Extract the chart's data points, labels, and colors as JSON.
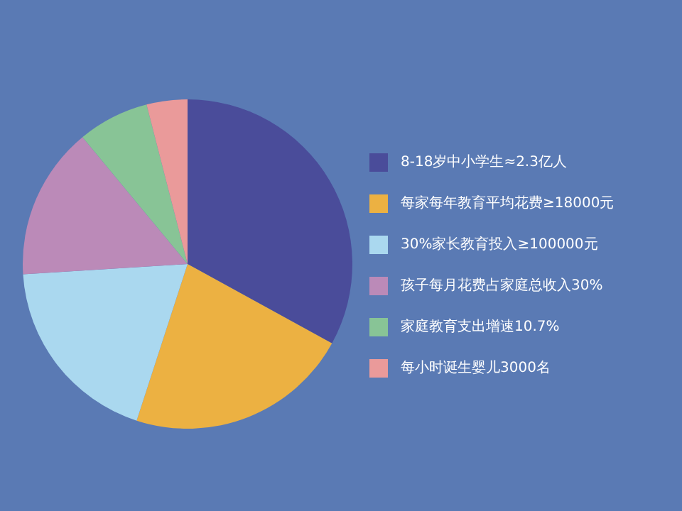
{
  "chart_data": {
    "type": "pie",
    "categories": [
      "8-18岁中小学生≈2.3亿人",
      "每家每年教育平均花费≥18000元",
      "30%家长教育投入≥100000元",
      "孩子每月花费占家庭总收入30%",
      "家庭教育支出增速10.7%",
      "每小时诞生婴儿3000名"
    ],
    "values": [
      33,
      22,
      19,
      15,
      7,
      4
    ],
    "colors": [
      "#4a4c9a",
      "#ecb142",
      "#aad8ef",
      "#bb8ab8",
      "#88c496",
      "#ea9a9a"
    ],
    "legend": "right"
  }
}
